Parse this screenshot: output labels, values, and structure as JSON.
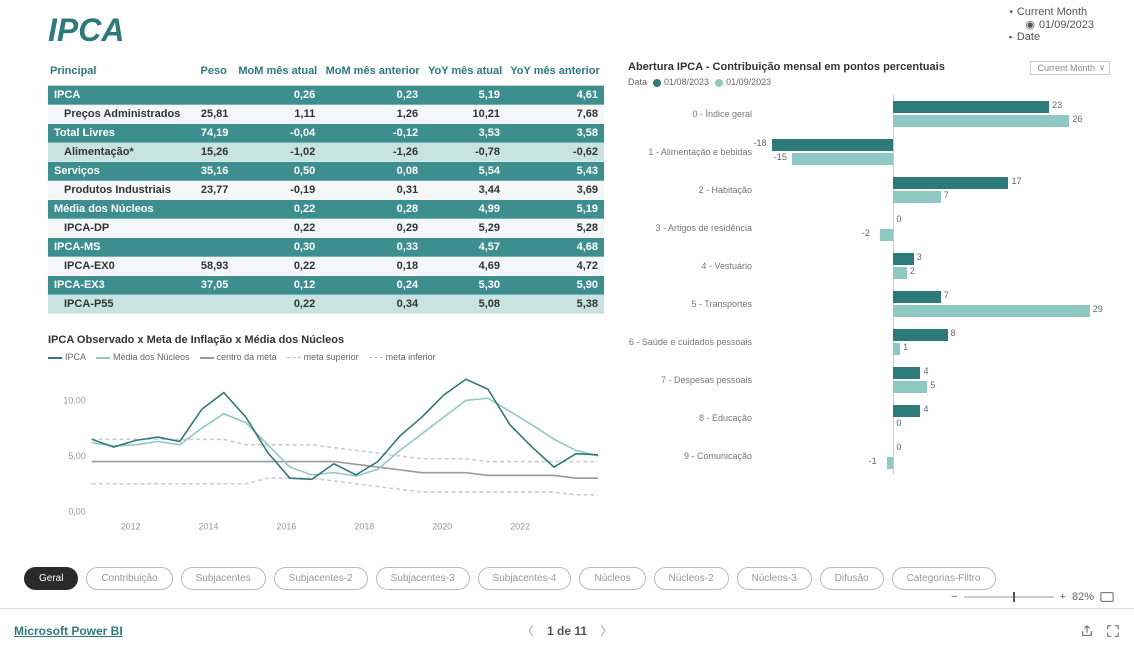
{
  "page_title": "IPCA",
  "top_right": {
    "current_month_label": "Current Month",
    "current_month_value": "01/09/2023",
    "date_label": "Date"
  },
  "table": {
    "headers": [
      "Principal",
      "Peso",
      "MoM mês atual",
      "MoM mês anterior",
      "YoY mês atual",
      "YoY mês anterior"
    ],
    "rows": [
      {
        "style": "h",
        "indent": 0,
        "c": [
          "IPCA",
          "",
          "0,26",
          "0,23",
          "5,19",
          "4,61"
        ]
      },
      {
        "style": "plain",
        "indent": 0,
        "c": [
          "Preços Administrados",
          "25,81",
          "1,11",
          "1,26",
          "10,21",
          "7,68"
        ]
      },
      {
        "style": "h",
        "indent": 0,
        "c": [
          "Total Livres",
          "74,19",
          "-0,04",
          "-0,12",
          "3,53",
          "3,58"
        ]
      },
      {
        "style": "sub",
        "indent": 1,
        "c": [
          "Alimentação*",
          "15,26",
          "-1,02",
          "-1,26",
          "-0,78",
          "-0,62"
        ]
      },
      {
        "style": "h",
        "indent": 1,
        "c": [
          "Serviços",
          "35,16",
          "0,50",
          "0,08",
          "5,54",
          "5,43"
        ]
      },
      {
        "style": "plain",
        "indent": 1,
        "c": [
          "Produtos Industriais",
          "23,77",
          "-0,19",
          "0,31",
          "3,44",
          "3,69"
        ]
      },
      {
        "style": "h",
        "indent": 0,
        "c": [
          "Média dos Núcleos",
          "",
          "0,22",
          "0,28",
          "4,99",
          "5,19"
        ]
      },
      {
        "style": "plain",
        "indent": 1,
        "c": [
          "IPCA-DP",
          "",
          "0,22",
          "0,29",
          "5,29",
          "5,28"
        ]
      },
      {
        "style": "h",
        "indent": 1,
        "c": [
          "IPCA-MS",
          "",
          "0,30",
          "0,33",
          "4,57",
          "4,68"
        ]
      },
      {
        "style": "plain",
        "indent": 1,
        "c": [
          "IPCA-EX0",
          "58,93",
          "0,22",
          "0,18",
          "4,69",
          "4,72"
        ]
      },
      {
        "style": "h",
        "indent": 1,
        "c": [
          "IPCA-EX3",
          "37,05",
          "0,12",
          "0,24",
          "5,30",
          "5,90"
        ]
      },
      {
        "style": "sub",
        "indent": 1,
        "c": [
          "IPCA-P55",
          "",
          "0,22",
          "0,34",
          "5,08",
          "5,38"
        ]
      }
    ]
  },
  "line_chart": {
    "title": "IPCA Observado x Meta de Inflação x Média dos Núcleos",
    "legend": [
      {
        "label": "IPCA",
        "color": "#2d7a7a",
        "dash": false
      },
      {
        "label": "Média dos Núcleos",
        "color": "#8fc9c3",
        "dash": false
      },
      {
        "label": "centro da meta",
        "color": "#999999",
        "dash": false
      },
      {
        "label": "meta superior",
        "color": "#bbbbbb",
        "dash": true
      },
      {
        "label": "meta inferior",
        "color": "#bbbbbb",
        "dash": true
      }
    ],
    "ylim": [
      0,
      12.5
    ],
    "yticks": [
      0,
      5,
      10
    ],
    "ytick_labels": [
      "0,00",
      "5,00",
      "10,00"
    ],
    "xlim": [
      2011,
      2024
    ],
    "xticks": [
      2012,
      2014,
      2016,
      2018,
      2020,
      2022
    ],
    "series": {
      "ipca": [
        6.5,
        5.8,
        6.4,
        6.7,
        6.3,
        9.2,
        10.7,
        8.5,
        5.3,
        3.0,
        2.9,
        4.3,
        3.3,
        4.5,
        6.8,
        8.5,
        10.5,
        11.9,
        11.0,
        7.8,
        5.8,
        4.0,
        5.2,
        5.1
      ],
      "nucleos": [
        6.2,
        5.9,
        6.0,
        6.3,
        6.0,
        7.5,
        8.8,
        8.0,
        6.0,
        4.0,
        3.3,
        3.5,
        3.2,
        3.8,
        5.5,
        7.0,
        8.5,
        10.0,
        10.2,
        9.0,
        7.8,
        6.5,
        5.5,
        5.0
      ],
      "centro": [
        4.5,
        4.5,
        4.5,
        4.5,
        4.5,
        4.5,
        4.5,
        4.5,
        4.5,
        4.5,
        4.5,
        4.5,
        4.25,
        4.0,
        3.75,
        3.5,
        3.5,
        3.5,
        3.25,
        3.25,
        3.25,
        3.25,
        3.0,
        3.0
      ],
      "sup": [
        6.5,
        6.5,
        6.5,
        6.5,
        6.5,
        6.5,
        6.5,
        6.0,
        6.0,
        6.0,
        6.0,
        5.75,
        5.5,
        5.25,
        5.0,
        4.75,
        4.75,
        4.75,
        4.5,
        4.5,
        4.5,
        4.5,
        4.5,
        4.5
      ],
      "inf": [
        2.5,
        2.5,
        2.5,
        2.5,
        2.5,
        2.5,
        2.5,
        2.5,
        3.0,
        3.0,
        3.0,
        2.75,
        2.5,
        2.25,
        2.0,
        1.75,
        1.75,
        1.75,
        1.75,
        1.75,
        1.75,
        1.75,
        1.5,
        1.5
      ]
    },
    "colors": {
      "ipca": "#2d7a7a",
      "nucleos": "#8fc9c3",
      "centro": "#999999",
      "sup": "#cccccc",
      "inf": "#cccccc"
    }
  },
  "bar_chart": {
    "title": "Abertura IPCA - Contribuição mensal em pontos percentuais",
    "data_label": "Data",
    "series": [
      {
        "label": "01/08/2023",
        "color": "#2d7a7a"
      },
      {
        "label": "01/09/2023",
        "color": "#8fc9c3"
      }
    ],
    "dropdown": "Current Month",
    "xlim": [
      -20,
      32
    ],
    "rows": [
      {
        "label": "0 - Índice geral",
        "v": [
          23,
          26
        ]
      },
      {
        "label": "1 - Alimentação e bebidas",
        "v": [
          -18,
          -15
        ]
      },
      {
        "label": "2 - Habitação",
        "v": [
          17,
          7
        ]
      },
      {
        "label": "3 - Artigos de residência",
        "v": [
          0,
          -2
        ]
      },
      {
        "label": "4 - Vestuário",
        "v": [
          3,
          2
        ]
      },
      {
        "label": "5 - Transportes",
        "v": [
          7,
          29
        ]
      },
      {
        "label": "6 - Saúde e cuidados pessoais",
        "v": [
          8,
          1
        ]
      },
      {
        "label": "7 - Despesas pessoais",
        "v": [
          4,
          5
        ]
      },
      {
        "label": "8 - Educação",
        "v": [
          4,
          0
        ]
      },
      {
        "label": "9 - Comunicação",
        "v": [
          0,
          -1
        ]
      }
    ]
  },
  "tabs": [
    "Geral",
    "Contribuição",
    "Subjacentes",
    "Subjacentes-2",
    "Subjacentes-3",
    "Subjacentes-4",
    "Núcleos",
    "Núcleos-2",
    "Núcleos-3",
    "Difusão",
    "Categorias-Filtro"
  ],
  "active_tab": 0,
  "zoom": {
    "minus": "−",
    "plus": "+",
    "value": "82%"
  },
  "footer": {
    "brand": "Microsoft Power BI",
    "page": "1 de 11"
  }
}
